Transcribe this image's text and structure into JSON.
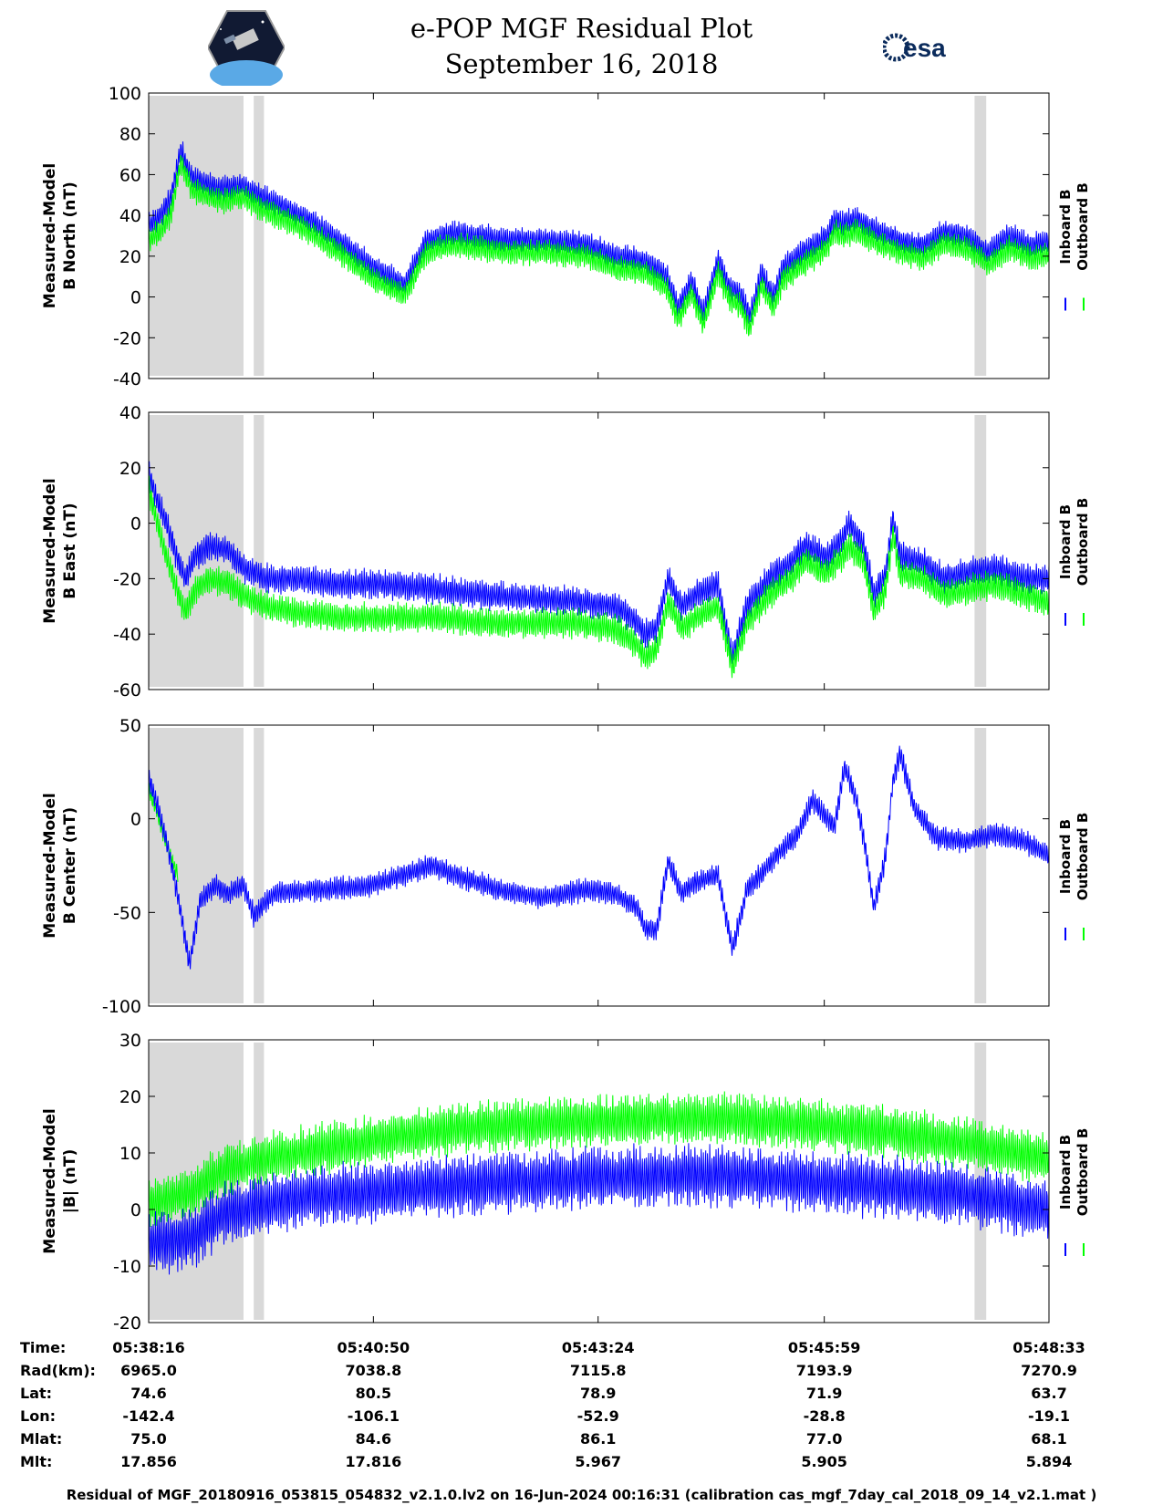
{
  "title": "e-POP MGF Residual Plot",
  "subtitle": "September 16, 2018",
  "logos": {
    "left": "cassiope-mission-logo",
    "right": "esa-logo",
    "right_text": "esa"
  },
  "colors": {
    "inboard": "#0000ff",
    "outboard": "#00ff00",
    "shade": "#d9d9d9"
  },
  "legend": {
    "inboard": "Inboard B",
    "outboard": "Outboard B"
  },
  "chart_data": [
    {
      "type": "line",
      "ylabel_line1": "Measured-Model",
      "ylabel_line2": "B North (nT)",
      "ylim": [
        -40,
        100
      ],
      "yticks": [
        "100",
        "80",
        "60",
        "40",
        "20",
        "0",
        "-20",
        "-40"
      ],
      "ytick_values": [
        100,
        80,
        60,
        40,
        20,
        0,
        -20,
        -40
      ],
      "xlim": [
        0,
        617
      ],
      "shaded_x_ranges": [
        [
          0,
          65
        ],
        [
          72,
          79
        ],
        [
          566,
          574
        ]
      ],
      "series": [
        {
          "name": "Inboard B",
          "color": "#0000ff",
          "noise": 7,
          "x": [
            0,
            8,
            15,
            22,
            30,
            38,
            50,
            65,
            75,
            90,
            110,
            130,
            155,
            175,
            190,
            200,
            210,
            225,
            245,
            270,
            300,
            320,
            340,
            355,
            363,
            372,
            380,
            390,
            398,
            405,
            412,
            420,
            428,
            435,
            445,
            455,
            465,
            470,
            475,
            485,
            500,
            515,
            530,
            545,
            560,
            575,
            590,
            605,
            617
          ],
          "y": [
            35,
            40,
            48,
            72,
            58,
            56,
            53,
            55,
            50,
            45,
            38,
            28,
            14,
            6,
            27,
            30,
            31,
            30,
            28,
            28,
            26,
            20,
            18,
            10,
            -5,
            8,
            -8,
            18,
            5,
            2,
            -10,
            12,
            0,
            15,
            20,
            25,
            30,
            38,
            36,
            38,
            32,
            28,
            25,
            32,
            30,
            22,
            30,
            25,
            27
          ]
        },
        {
          "name": "Outboard B",
          "color": "#00ff00",
          "noise": 7,
          "x": [
            0,
            8,
            15,
            22,
            30,
            38,
            50,
            65,
            75,
            90,
            110,
            130,
            155,
            175,
            190,
            200,
            210,
            225,
            245,
            270,
            300,
            320,
            340,
            355,
            363,
            372,
            380,
            390,
            398,
            405,
            412,
            420,
            428,
            435,
            445,
            455,
            465,
            470,
            475,
            485,
            500,
            515,
            530,
            545,
            560,
            575,
            590,
            605,
            617
          ],
          "y": [
            28,
            32,
            40,
            66,
            52,
            50,
            47,
            49,
            44,
            39,
            32,
            22,
            8,
            1,
            21,
            24,
            25,
            24,
            22,
            22,
            20,
            14,
            12,
            4,
            -11,
            2,
            -14,
            12,
            -1,
            -4,
            -16,
            6,
            -6,
            9,
            14,
            19,
            24,
            32,
            30,
            32,
            26,
            22,
            19,
            26,
            24,
            16,
            24,
            19,
            21
          ]
        }
      ]
    },
    {
      "type": "line",
      "ylabel_line1": "Measured-Model",
      "ylabel_line2": "B East (nT)",
      "ylim": [
        -60,
        40
      ],
      "yticks": [
        "40",
        "20",
        "0",
        "-20",
        "-40",
        "-60"
      ],
      "ytick_values": [
        40,
        20,
        0,
        -20,
        -40,
        -60
      ],
      "xlim": [
        0,
        617
      ],
      "shaded_x_ranges": [
        [
          0,
          65
        ],
        [
          72,
          79
        ],
        [
          566,
          574
        ]
      ],
      "series": [
        {
          "name": "Inboard B",
          "color": "#0000ff",
          "noise": 6,
          "x": [
            0,
            6,
            12,
            18,
            25,
            32,
            42,
            55,
            65,
            80,
            100,
            130,
            160,
            200,
            230,
            260,
            290,
            320,
            335,
            340,
            348,
            356,
            365,
            375,
            390,
            395,
            400,
            410,
            425,
            440,
            450,
            465,
            475,
            480,
            490,
            497,
            505,
            510,
            515,
            530,
            545,
            560,
            580,
            600,
            617
          ],
          "y": [
            18,
            8,
            0,
            -10,
            -20,
            -12,
            -8,
            -10,
            -16,
            -20,
            -20,
            -22,
            -22,
            -24,
            -26,
            -27,
            -28,
            -30,
            -36,
            -40,
            -38,
            -20,
            -30,
            -26,
            -22,
            -36,
            -48,
            -30,
            -20,
            -14,
            -8,
            -12,
            -6,
            0,
            -8,
            -26,
            -18,
            2,
            -12,
            -14,
            -20,
            -18,
            -16,
            -20,
            -20
          ]
        },
        {
          "name": "Outboard B",
          "color": "#00ff00",
          "noise": 6,
          "x": [
            0,
            6,
            12,
            18,
            25,
            32,
            42,
            55,
            65,
            80,
            100,
            130,
            160,
            200,
            230,
            260,
            290,
            320,
            335,
            340,
            348,
            356,
            365,
            375,
            390,
            395,
            400,
            410,
            425,
            440,
            450,
            465,
            475,
            480,
            490,
            497,
            505,
            510,
            515,
            530,
            545,
            560,
            580,
            600,
            617
          ],
          "y": [
            12,
            0,
            -12,
            -22,
            -32,
            -24,
            -20,
            -22,
            -26,
            -30,
            -32,
            -34,
            -34,
            -34,
            -36,
            -36,
            -36,
            -38,
            -44,
            -48,
            -46,
            -28,
            -38,
            -34,
            -30,
            -40,
            -52,
            -36,
            -26,
            -20,
            -14,
            -18,
            -12,
            -8,
            -14,
            -32,
            -24,
            -4,
            -18,
            -20,
            -26,
            -24,
            -22,
            -26,
            -28
          ]
        }
      ]
    },
    {
      "type": "line",
      "ylabel_line1": "Measured-Model",
      "ylabel_line2": "B Center (nT)",
      "ylim": [
        -100,
        50
      ],
      "yticks": [
        "50",
        "0",
        "-50",
        "-100"
      ],
      "ytick_values": [
        50,
        0,
        -50,
        -100
      ],
      "xlim": [
        0,
        617
      ],
      "shaded_x_ranges": [
        [
          0,
          65
        ],
        [
          72,
          79
        ],
        [
          566,
          574
        ]
      ],
      "series": [
        {
          "name": "Outboard B",
          "color": "#00ff00",
          "noise": 5,
          "x": [
            0,
            5,
            10,
            15,
            20
          ],
          "y": [
            15,
            5,
            -8,
            -20,
            -30
          ]
        },
        {
          "name": "Inboard B",
          "color": "#0000ff",
          "noise": 7,
          "x": [
            0,
            5,
            10,
            15,
            22,
            28,
            35,
            45,
            55,
            65,
            72,
            85,
            110,
            150,
            195,
            210,
            240,
            270,
            300,
            320,
            335,
            340,
            348,
            356,
            365,
            375,
            390,
            395,
            400,
            410,
            430,
            445,
            455,
            465,
            470,
            477,
            485,
            490,
            497,
            505,
            510,
            515,
            525,
            540,
            560,
            580,
            600,
            617
          ],
          "y": [
            22,
            10,
            -5,
            -22,
            -50,
            -78,
            -45,
            -35,
            -40,
            -35,
            -52,
            -40,
            -38,
            -36,
            -25,
            -30,
            -38,
            -42,
            -38,
            -40,
            -48,
            -58,
            -60,
            -22,
            -40,
            -34,
            -30,
            -50,
            -70,
            -38,
            -20,
            -8,
            10,
            0,
            -5,
            28,
            10,
            -10,
            -48,
            -20,
            20,
            35,
            5,
            -10,
            -12,
            -8,
            -12,
            -20
          ]
        }
      ]
    },
    {
      "type": "line",
      "ylabel_line1": "Measured-Model",
      "ylabel_line2": "|B| (nT)",
      "ylim": [
        -20,
        30
      ],
      "yticks": [
        "30",
        "20",
        "10",
        "0",
        "-10",
        "-20"
      ],
      "ytick_values": [
        30,
        20,
        10,
        0,
        -10,
        -20
      ],
      "xlim": [
        0,
        617
      ],
      "shaded_x_ranges": [
        [
          0,
          65
        ],
        [
          72,
          79
        ],
        [
          566,
          574
        ]
      ],
      "series": [
        {
          "name": "Outboard B",
          "color": "#00ff00",
          "noise": 5,
          "x": [
            0,
            30,
            50,
            65,
            100,
            150,
            200,
            250,
            300,
            350,
            400,
            450,
            500,
            550,
            617
          ],
          "y": [
            1,
            3,
            7,
            8,
            10,
            12,
            14,
            15,
            15.5,
            16,
            16,
            15,
            14,
            12,
            9
          ]
        },
        {
          "name": "Inboard B",
          "color": "#0000ff",
          "noise": 6,
          "x": [
            0,
            30,
            50,
            65,
            100,
            150,
            200,
            250,
            300,
            350,
            400,
            450,
            500,
            550,
            617
          ],
          "y": [
            -6,
            -5,
            -1,
            0,
            2,
            3,
            4,
            5,
            5.5,
            6,
            6,
            5,
            4,
            3,
            0
          ]
        }
      ]
    }
  ],
  "x_axis": {
    "tick_values": [
      0,
      154,
      308,
      463,
      617
    ],
    "rows": [
      {
        "label": "Time:",
        "values": [
          "05:38:16",
          "05:40:50",
          "05:43:24",
          "05:45:59",
          "05:48:33"
        ]
      },
      {
        "label": "Rad(km):",
        "values": [
          "6965.0",
          "7038.8",
          "7115.8",
          "7193.9",
          "7270.9"
        ]
      },
      {
        "label": "Lat:",
        "values": [
          "74.6",
          "80.5",
          "78.9",
          "71.9",
          "63.7"
        ]
      },
      {
        "label": "Lon:",
        "values": [
          "-142.4",
          "-106.1",
          "-52.9",
          "-28.8",
          "-19.1"
        ]
      },
      {
        "label": "Mlat:",
        "values": [
          "75.0",
          "84.6",
          "86.1",
          "77.0",
          "68.1"
        ]
      },
      {
        "label": "Mlt:",
        "values": [
          "17.856",
          "17.816",
          "5.967",
          "5.905",
          "5.894"
        ]
      }
    ]
  },
  "footer": "Residual of MGF_20180916_053815_054832_v2.1.0.lv2 on 16-Jun-2024 00:16:31 (calibration cas_mgf_7day_cal_2018_09_14_v2.1.mat )"
}
